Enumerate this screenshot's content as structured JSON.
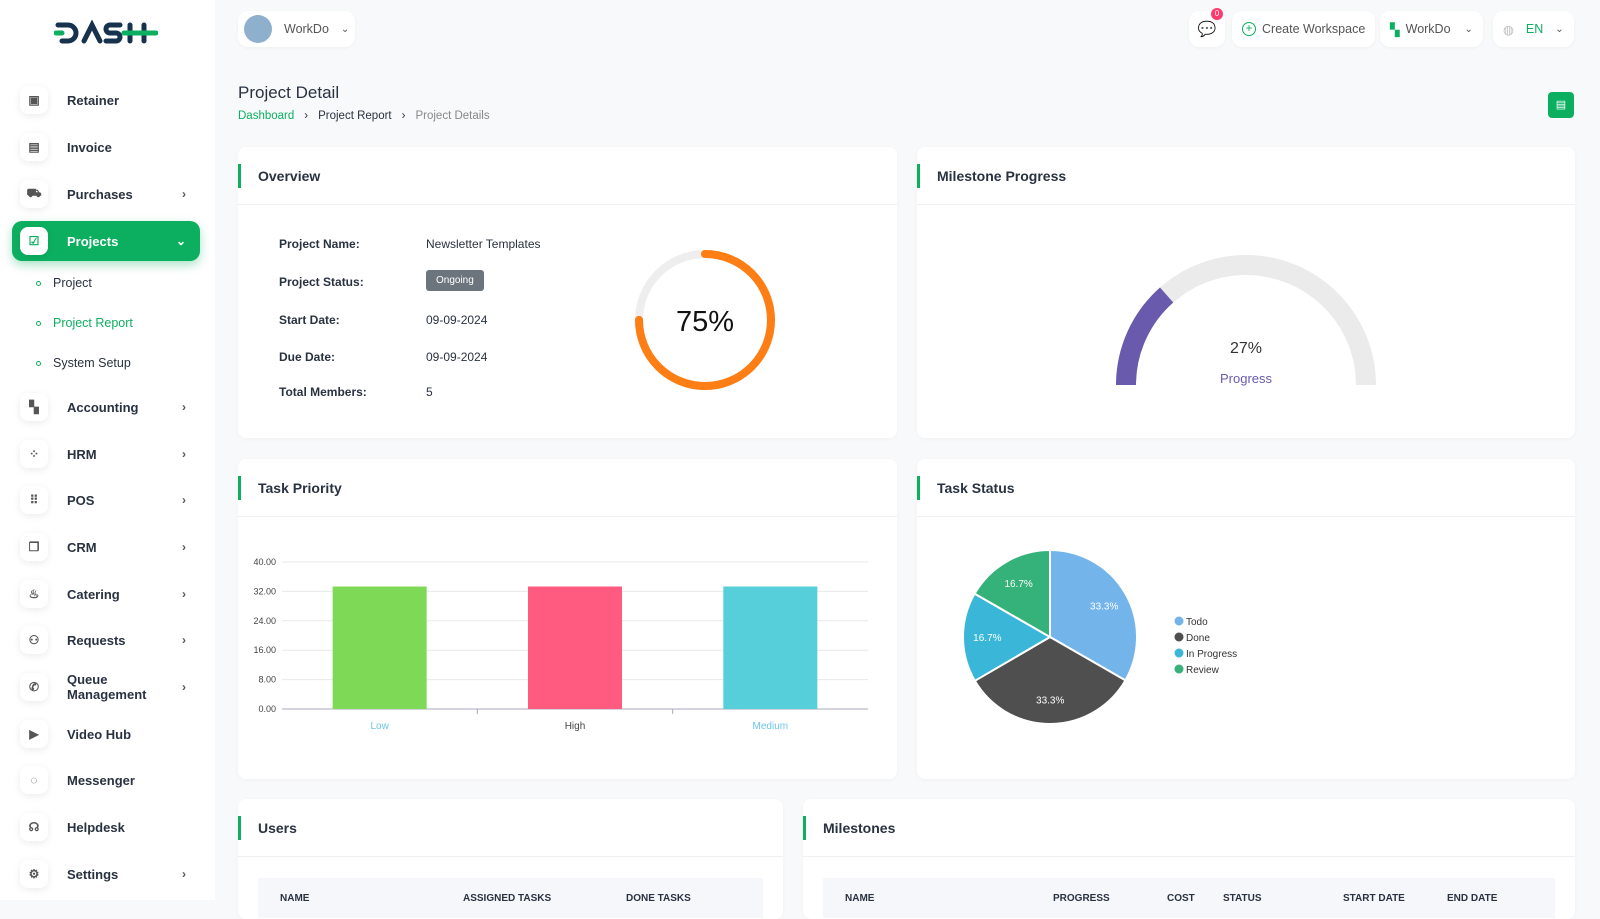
{
  "brand": "DASH",
  "header": {
    "workspace": "WorkDo",
    "notifications": "0",
    "create_workspace": "Create Workspace",
    "workspace_menu": "WorkDo",
    "language": "EN"
  },
  "sidebar": {
    "items": [
      {
        "label": "Retainer",
        "icon": "floppy-icon",
        "chev": ""
      },
      {
        "label": "Invoice",
        "icon": "file-icon",
        "chev": ""
      },
      {
        "label": "Purchases",
        "icon": "cart-icon",
        "chev": "›"
      },
      {
        "label": "Projects",
        "icon": "checkbox-icon",
        "chev": "⌄"
      },
      {
        "label": "Accounting",
        "icon": "apps-icon",
        "chev": "›"
      },
      {
        "label": "HRM",
        "icon": "users-icon",
        "chev": "›"
      },
      {
        "label": "POS",
        "icon": "grid-icon",
        "chev": "›"
      },
      {
        "label": "CRM",
        "icon": "layers-icon",
        "chev": "›"
      },
      {
        "label": "Catering",
        "icon": "chef-icon",
        "chev": "›"
      },
      {
        "label": "Requests",
        "icon": "user-plus-icon",
        "chev": "›"
      },
      {
        "label": "Queue Management",
        "icon": "phone-icon",
        "chev": "›"
      },
      {
        "label": "Video Hub",
        "icon": "video-icon",
        "chev": ""
      },
      {
        "label": "Messenger",
        "icon": "message-icon",
        "chev": ""
      },
      {
        "label": "Helpdesk",
        "icon": "headset-icon",
        "chev": ""
      },
      {
        "label": "Settings",
        "icon": "gear-icon",
        "chev": "›"
      }
    ],
    "sub": [
      "Project",
      "Project Report",
      "System Setup"
    ]
  },
  "page": {
    "title": "Project Detail",
    "breadcrumb": [
      "Dashboard",
      "Project Report",
      "Project Details"
    ]
  },
  "overview": {
    "title": "Overview",
    "rows": [
      {
        "k": "Project Name:",
        "v": "Newsletter Templates"
      },
      {
        "k": "Project Status:",
        "v": "Ongoing"
      },
      {
        "k": "Start Date:",
        "v": "09-09-2024"
      },
      {
        "k": "Due Date:",
        "v": "09-09-2024"
      },
      {
        "k": "Total Members:",
        "v": "5"
      }
    ],
    "progress": 75,
    "progress_label": "75%",
    "colors": {
      "ring": "#fd7e14"
    }
  },
  "milestone": {
    "title": "Milestone Progress",
    "value": 27,
    "value_label": "27%",
    "label": "Progress",
    "color": "#6a5aad"
  },
  "chart_data": [
    {
      "type": "bar",
      "title": "Task Priority",
      "categories": [
        "Low",
        "High",
        "Medium"
      ],
      "values": [
        33.33,
        33.33,
        33.33
      ],
      "colors": [
        "#7ed957",
        "#ff5a80",
        "#56cfdb"
      ],
      "yticks": [
        "0.00",
        "8.00",
        "16.00",
        "24.00",
        "32.00",
        "40.00"
      ],
      "ylim": [
        0,
        40
      ],
      "grid": true
    },
    {
      "type": "pie",
      "title": "Task Status",
      "labels": [
        "Todo",
        "Done",
        "In Progress",
        "Review"
      ],
      "values": [
        33.3,
        33.3,
        16.7,
        16.7
      ],
      "data_labels": [
        "33.3%",
        "33.3%",
        "16.7%",
        "16.7%"
      ],
      "colors": [
        "#73b4ea",
        "#4f4f4f",
        "#39b6d8",
        "#35b27a"
      ],
      "legend": "right"
    }
  ],
  "users": {
    "title": "Users",
    "columns": [
      "NAME",
      "ASSIGNED TASKS",
      "DONE TASKS"
    ]
  },
  "milestones": {
    "title": "Milestones",
    "columns": [
      "NAME",
      "PROGRESS",
      "COST",
      "STATUS",
      "START DATE",
      "END DATE"
    ]
  }
}
